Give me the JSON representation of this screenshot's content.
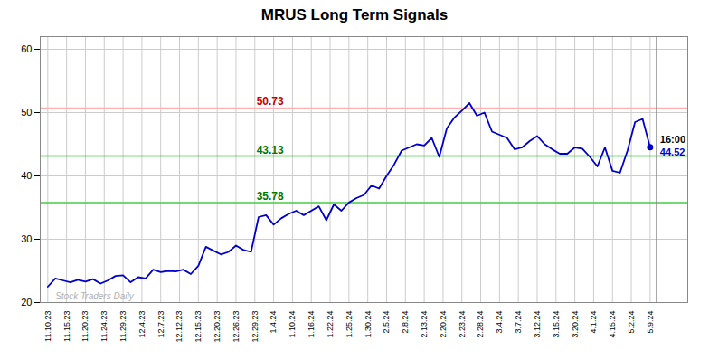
{
  "chart_data": {
    "type": "line",
    "title": "MRUS Long Term Signals",
    "color": "#0000cc",
    "values": [
      22.5,
      23.8,
      23.5,
      23.2,
      23.6,
      23.3,
      23.7,
      23.0,
      23.5,
      24.2,
      24.3,
      23.2,
      24.0,
      23.8,
      25.2,
      24.8,
      25.0,
      24.9,
      25.2,
      24.5,
      25.8,
      28.8,
      28.2,
      27.6,
      28.0,
      29.0,
      28.3,
      28.0,
      33.5,
      33.8,
      32.3,
      33.3,
      34.0,
      34.5,
      33.8,
      34.5,
      35.2,
      33.0,
      35.5,
      34.5,
      35.8,
      36.5,
      37.0,
      38.5,
      38.0,
      40.0,
      41.8,
      44.0,
      44.5,
      45.0,
      44.8,
      46.0,
      43.0,
      47.5,
      49.2,
      50.3,
      51.5,
      49.5,
      50.0,
      47.0,
      46.5,
      46.0,
      44.2,
      44.5,
      45.5,
      46.3,
      45.0,
      44.2,
      43.5,
      43.5,
      44.5,
      44.3,
      43.0,
      41.5,
      44.5,
      40.8,
      40.5,
      44.0,
      48.5,
      49.0,
      44.52
    ],
    "xlim": [
      -1,
      85
    ],
    "xticks": [
      {
        "value": 0,
        "label": "11.10.23"
      },
      {
        "value": 2.5,
        "label": "11.15.23"
      },
      {
        "value": 5,
        "label": "11.20.23"
      },
      {
        "value": 7.5,
        "label": "11.24.23"
      },
      {
        "value": 10,
        "label": "11.29.23"
      },
      {
        "value": 12.5,
        "label": "12.4.23"
      },
      {
        "value": 15,
        "label": "12.7.23"
      },
      {
        "value": 17.5,
        "label": "12.12.23"
      },
      {
        "value": 20,
        "label": "12.15.23"
      },
      {
        "value": 22.5,
        "label": "12.20.23"
      },
      {
        "value": 25,
        "label": "12.26.23"
      },
      {
        "value": 27.5,
        "label": "12.29.23"
      },
      {
        "value": 30,
        "label": "1.4.24"
      },
      {
        "value": 32.5,
        "label": "1.10.24"
      },
      {
        "value": 35,
        "label": "1.16.24"
      },
      {
        "value": 37.5,
        "label": "1.22.24"
      },
      {
        "value": 40,
        "label": "1.25.24"
      },
      {
        "value": 42.5,
        "label": "1.30.24"
      },
      {
        "value": 45,
        "label": "2.5.24"
      },
      {
        "value": 47.5,
        "label": "2.8.24"
      },
      {
        "value": 50,
        "label": "2.13.24"
      },
      {
        "value": 52.5,
        "label": "2.20.24"
      },
      {
        "value": 55,
        "label": "2.23.24"
      },
      {
        "value": 57.5,
        "label": "2.28.24"
      },
      {
        "value": 60,
        "label": "3.4.24"
      },
      {
        "value": 62.5,
        "label": "3.7.24"
      },
      {
        "value": 65,
        "label": "3.12.24"
      },
      {
        "value": 67.5,
        "label": "3.15.24"
      },
      {
        "value": 70,
        "label": "3.20.24"
      },
      {
        "value": 72.5,
        "label": "4.1.24"
      },
      {
        "value": 75,
        "label": "4.15.24"
      },
      {
        "value": 77.5,
        "label": "5.2.24"
      },
      {
        "value": 80,
        "label": "5.9.24"
      }
    ],
    "ylim": [
      20,
      62
    ],
    "yticks": [
      20,
      30,
      40,
      50,
      60
    ],
    "grid": true,
    "reference_lines": [
      {
        "value": 50.73,
        "color": "#ffb0b0",
        "label": "50.73",
        "label_color": "#cc0000"
      },
      {
        "value": 43.13,
        "color": "#00bb00",
        "label": "43.13",
        "label_color": "#007700"
      },
      {
        "value": 35.78,
        "color": "#44cc44",
        "label": "35.78",
        "label_color": "#007700"
      }
    ],
    "end_labels": [
      {
        "text": "16:00",
        "color": "#000000"
      },
      {
        "text": "44.52",
        "color": "#0000cc"
      }
    ],
    "watermark": {
      "text": "Stock Traders Daily",
      "color": "#b0b0b0"
    }
  }
}
